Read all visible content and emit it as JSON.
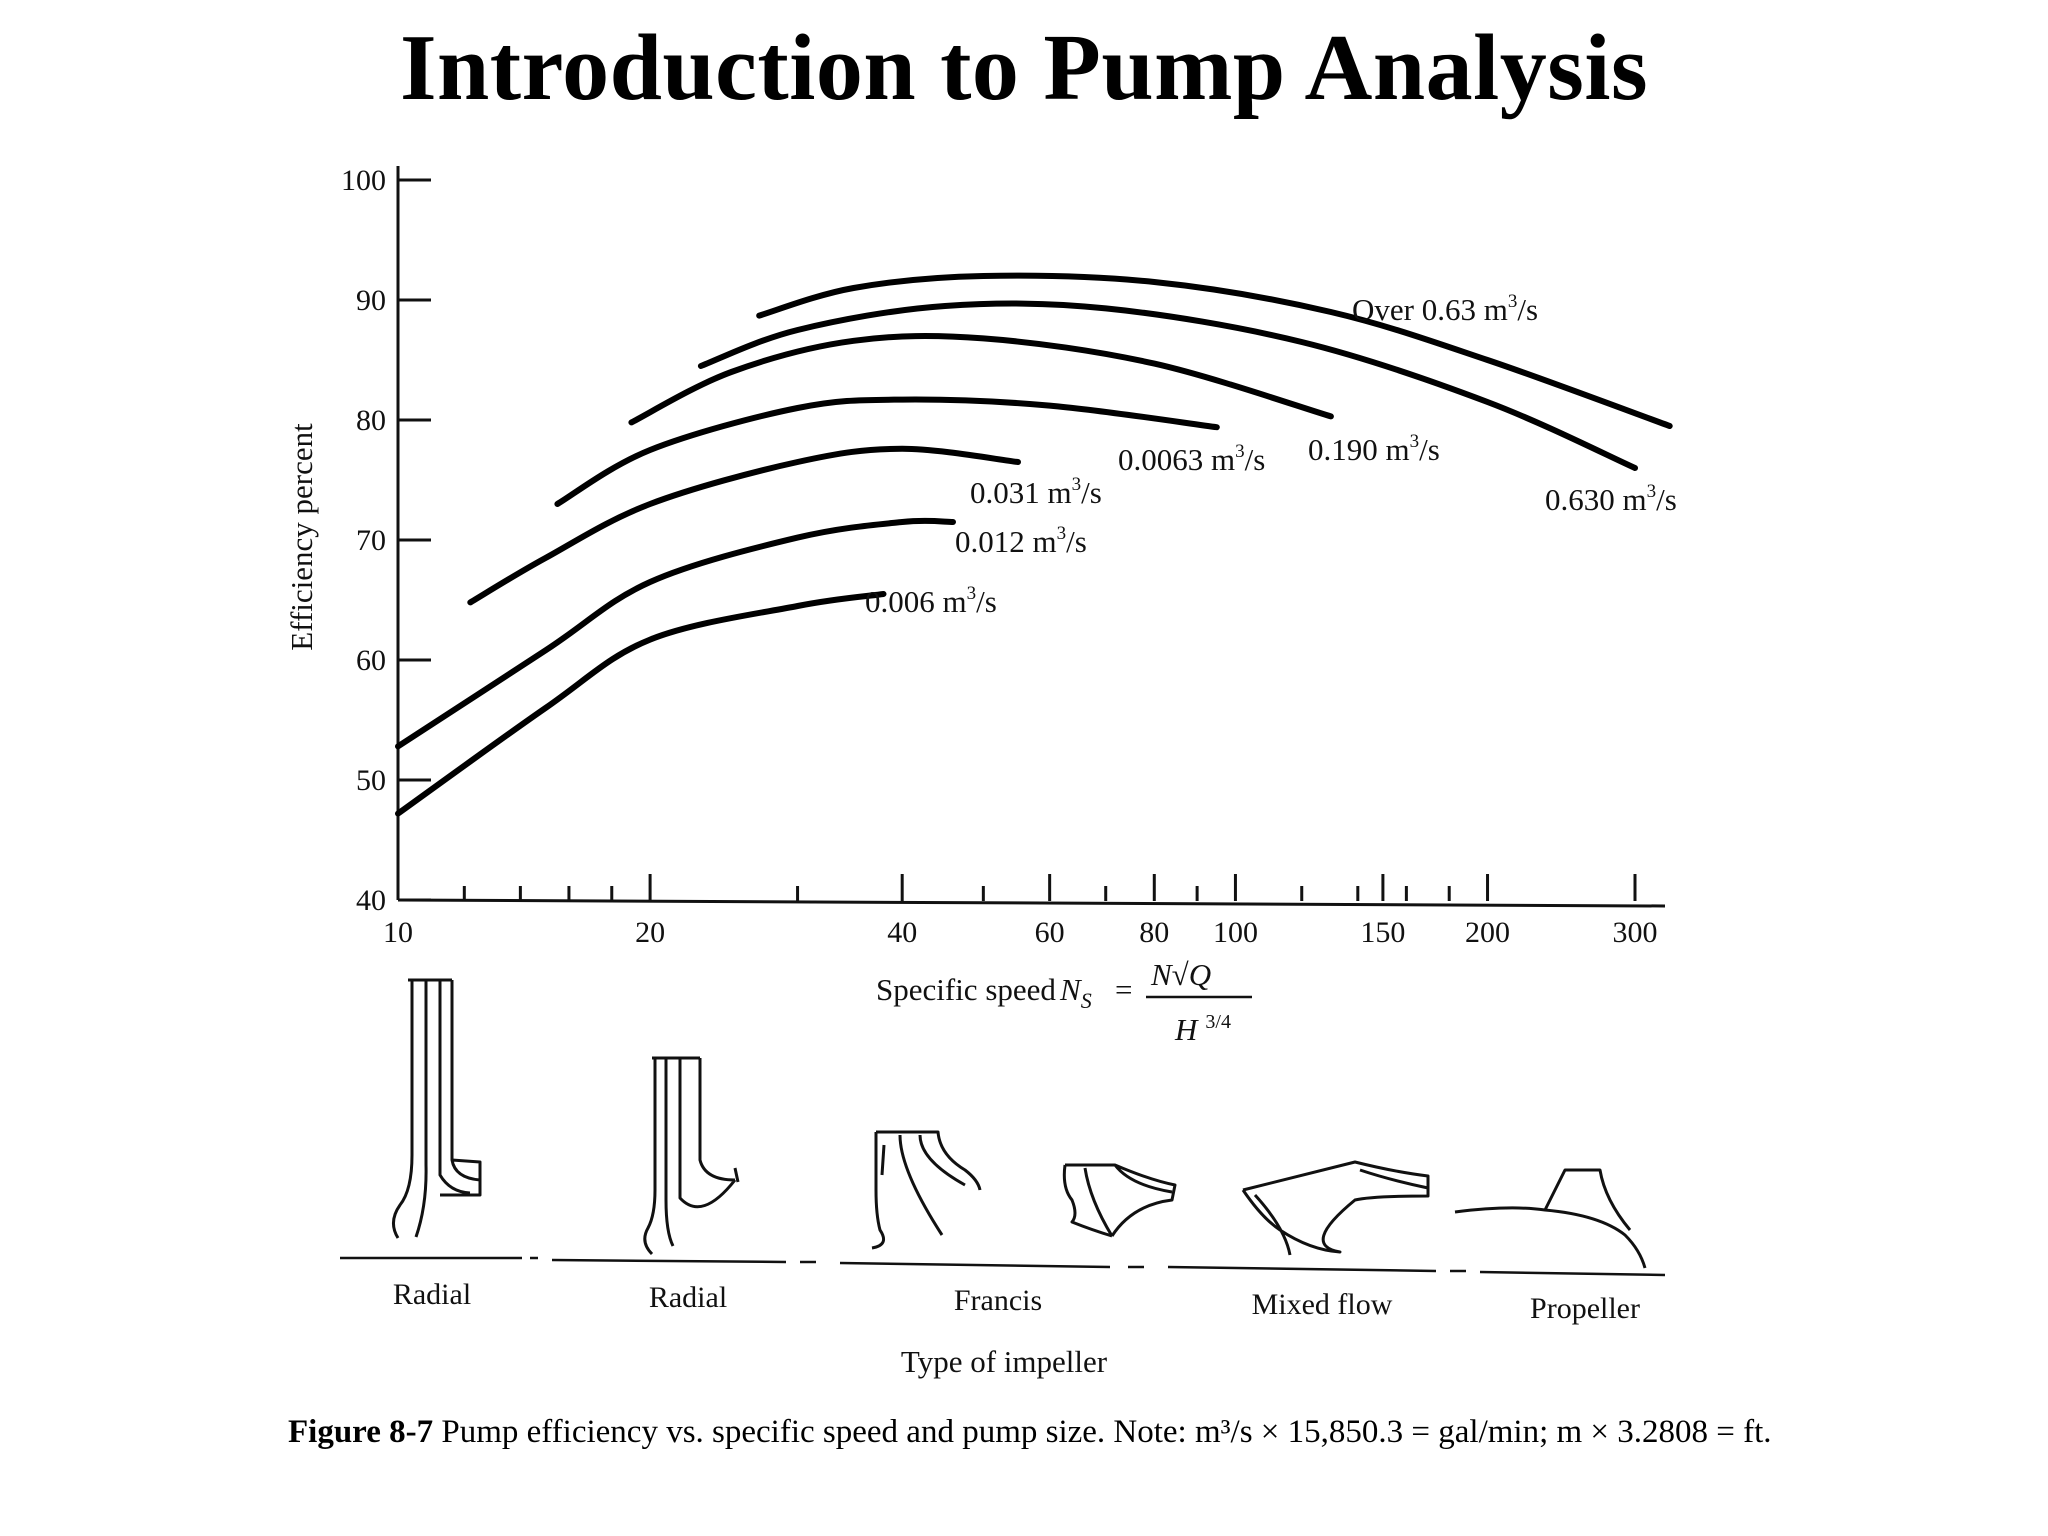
{
  "slide_title": "Introduction to Pump Analysis",
  "caption": {
    "label": "Figure 8-7",
    "text": "Pump efficiency vs. specific speed and pump size. Note: m³/s × 15,850.3 = gal/min; m × 3.2808 = ft."
  },
  "chart_data": {
    "type": "line",
    "x_scale": "log",
    "xlabel": "Specific speed N_S = N√Q / H^3/4",
    "xlabel_prefix": "Specific speed",
    "xlabel_formula": {
      "symbol": "N",
      "subscript": "S",
      "numerator": "N√Q",
      "denominator": "H",
      "exponent": "3/4"
    },
    "ylabel": "Efficiency percent",
    "xlim": [
      10,
      320
    ],
    "ylim": [
      40,
      100
    ],
    "x_tick_labels": [
      10,
      20,
      40,
      60,
      80,
      100,
      150,
      200,
      300
    ],
    "x_minor_ticks": [
      12,
      14,
      16,
      18,
      30,
      50,
      70,
      90,
      120,
      140,
      160,
      180
    ],
    "y_ticks": [
      40,
      50,
      60,
      70,
      80,
      90,
      100
    ],
    "grid": false,
    "series": [
      {
        "name": "0.006 m³/s",
        "points": [
          [
            10,
            47.2
          ],
          [
            15,
            56
          ],
          [
            20,
            61.7
          ],
          [
            30,
            64.5
          ],
          [
            38,
            65.5
          ]
        ]
      },
      {
        "name": "0.012 m³/s",
        "points": [
          [
            10,
            52.8
          ],
          [
            15,
            60.8
          ],
          [
            20,
            66.5
          ],
          [
            30,
            70.2
          ],
          [
            40,
            71.5
          ],
          [
            46,
            71.5
          ]
        ]
      },
      {
        "name": "0.031 m³/s",
        "points": [
          [
            12.2,
            64.8
          ],
          [
            15,
            68.5
          ],
          [
            20,
            73
          ],
          [
            30,
            76.5
          ],
          [
            40,
            77.6
          ],
          [
            55,
            76.5
          ]
        ]
      },
      {
        "name": "0.0063 m³/s",
        "points": [
          [
            15.5,
            73
          ],
          [
            20,
            77.5
          ],
          [
            30,
            81
          ],
          [
            40,
            81.7
          ],
          [
            60,
            81.2
          ],
          [
            95,
            79.4
          ]
        ]
      },
      {
        "name": "0.190 m³/s",
        "points": [
          [
            19,
            79.8
          ],
          [
            25,
            84
          ],
          [
            35,
            86.6
          ],
          [
            50,
            86.8
          ],
          [
            80,
            84.7
          ],
          [
            130,
            80.3
          ]
        ]
      },
      {
        "name": "0.630 m³/s",
        "points": [
          [
            23,
            84.5
          ],
          [
            30,
            87.5
          ],
          [
            45,
            89.5
          ],
          [
            70,
            89.3
          ],
          [
            120,
            86.5
          ],
          [
            200,
            81.5
          ],
          [
            300,
            76
          ]
        ]
      },
      {
        "name": "Over 0.63 m³/s",
        "points": [
          [
            27,
            88.7
          ],
          [
            35,
            91
          ],
          [
            50,
            92
          ],
          [
            80,
            91.5
          ],
          [
            130,
            89
          ],
          [
            200,
            85
          ],
          [
            330,
            79.5
          ]
        ]
      }
    ],
    "impeller_types": [
      "Radial",
      "Radial",
      "Francis",
      "Mixed flow",
      "Propeller"
    ],
    "impeller_axis_label": "Type of impeller"
  }
}
